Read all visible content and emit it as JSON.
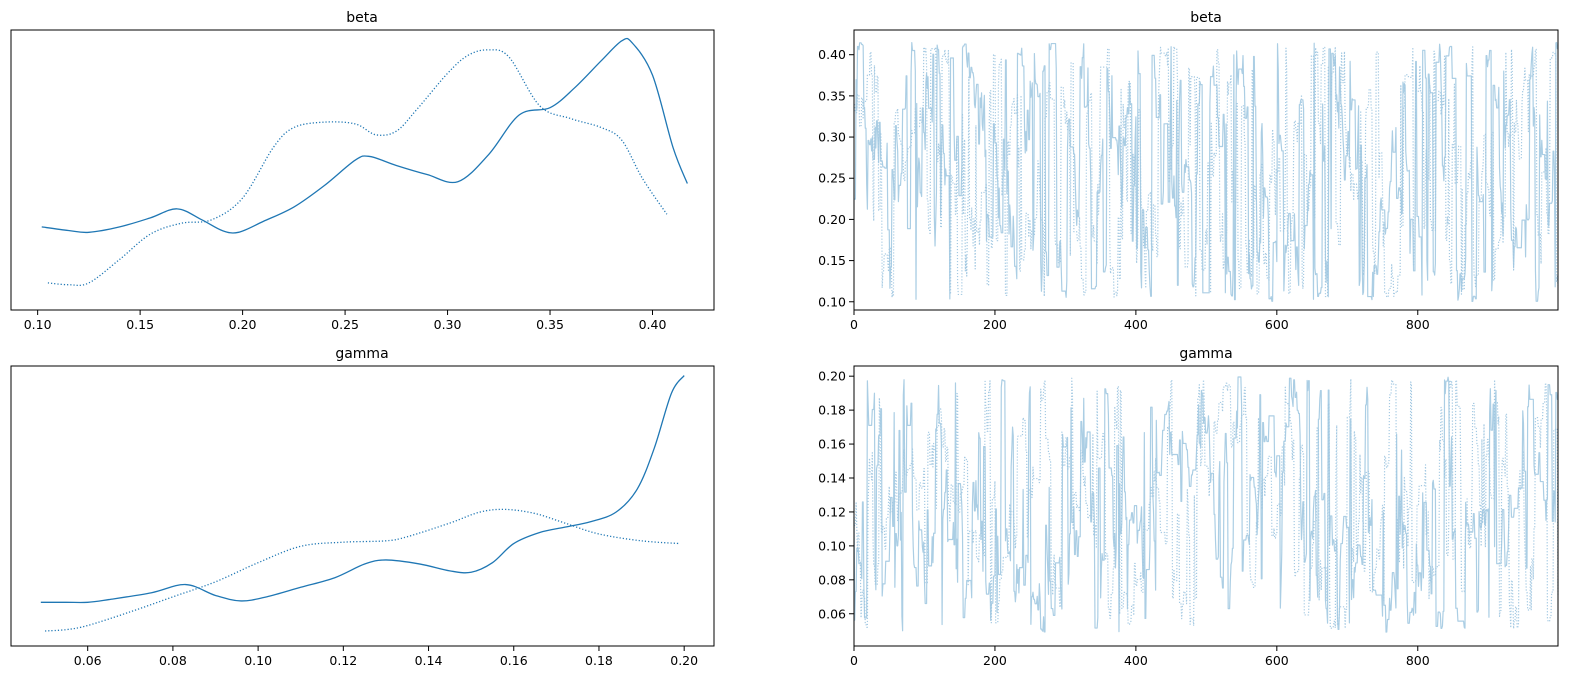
{
  "colors": {
    "kde_line": "#1f77b4",
    "trace_line": "#a6cbe3",
    "trace_dotted": "#9fc6e0",
    "frame": "#000000",
    "background": "#ffffff"
  },
  "chart_data": [
    {
      "type": "line",
      "title": "beta",
      "xlabel": "",
      "ylabel": "",
      "xlim": [
        0.087,
        0.43
      ],
      "xticks": [
        0.1,
        0.15,
        0.2,
        0.25,
        0.3,
        0.35,
        0.4
      ],
      "xtick_labels": [
        "0.10",
        "0.15",
        "0.20",
        "0.25",
        "0.30",
        "0.35",
        "0.40"
      ],
      "yticks_visible": false,
      "grid": false,
      "series": [
        {
          "style": "solid",
          "x": [
            0.102,
            0.115,
            0.125,
            0.14,
            0.155,
            0.168,
            0.18,
            0.19,
            0.198,
            0.21,
            0.225,
            0.24,
            0.255,
            0.262,
            0.275,
            0.29,
            0.305,
            0.32,
            0.335,
            0.35,
            0.362,
            0.375,
            0.385,
            0.39,
            0.4,
            0.41,
            0.417
          ],
          "y": [
            0.36,
            0.34,
            0.33,
            0.36,
            0.41,
            0.46,
            0.4,
            0.34,
            0.33,
            0.39,
            0.47,
            0.59,
            0.73,
            0.75,
            0.7,
            0.65,
            0.61,
            0.76,
            0.98,
            1.02,
            1.13,
            1.28,
            1.39,
            1.38,
            1.2,
            0.8,
            0.6
          ]
        },
        {
          "style": "dotted",
          "x": [
            0.105,
            0.115,
            0.125,
            0.14,
            0.155,
            0.17,
            0.185,
            0.2,
            0.215,
            0.225,
            0.24,
            0.255,
            0.265,
            0.275,
            0.285,
            0.3,
            0.31,
            0.32,
            0.33,
            0.345,
            0.36,
            0.375,
            0.385,
            0.395,
            0.407
          ],
          "y": [
            0.05,
            0.04,
            0.05,
            0.18,
            0.32,
            0.38,
            0.4,
            0.52,
            0.8,
            0.91,
            0.94,
            0.93,
            0.87,
            0.89,
            1.01,
            1.21,
            1.31,
            1.34,
            1.3,
            1.03,
            0.96,
            0.91,
            0.84,
            0.63,
            0.43
          ]
        }
      ]
    },
    {
      "type": "line",
      "title": "beta",
      "xlabel": "",
      "ylabel": "",
      "xlim": [
        0,
        999
      ],
      "ylim": [
        0.09,
        0.43
      ],
      "xticks": [
        0,
        200,
        400,
        600,
        800
      ],
      "xtick_labels": [
        "0",
        "200",
        "400",
        "600",
        "800"
      ],
      "yticks": [
        0.1,
        0.15,
        0.2,
        0.25,
        0.3,
        0.35,
        0.4
      ],
      "ytick_labels": [
        "0.10",
        "0.15",
        "0.20",
        "0.25",
        "0.30",
        "0.35",
        "0.40"
      ],
      "grid": false,
      "series": [
        {
          "style": "solid",
          "n_draws": 1000,
          "range": [
            0.1,
            0.415
          ]
        },
        {
          "style": "dotted",
          "n_draws": 1000,
          "range": [
            0.105,
            0.41
          ]
        }
      ]
    },
    {
      "type": "line",
      "title": "gamma",
      "xlabel": "",
      "ylabel": "",
      "xlim": [
        0.042,
        0.207
      ],
      "xticks": [
        0.06,
        0.08,
        0.1,
        0.12,
        0.14,
        0.16,
        0.18,
        0.2
      ],
      "xtick_labels": [
        "0.06",
        "0.08",
        "0.10",
        "0.12",
        "0.14",
        "0.16",
        "0.18",
        "0.20"
      ],
      "yticks_visible": false,
      "grid": false,
      "series": [
        {
          "style": "solid",
          "x": [
            0.049,
            0.055,
            0.06,
            0.065,
            0.075,
            0.083,
            0.09,
            0.096,
            0.102,
            0.11,
            0.118,
            0.125,
            0.13,
            0.138,
            0.145,
            0.15,
            0.155,
            0.16,
            0.166,
            0.172,
            0.178,
            0.184,
            0.189,
            0.193,
            0.197,
            0.2
          ],
          "y": [
            0.27,
            0.27,
            0.27,
            0.29,
            0.34,
            0.4,
            0.32,
            0.28,
            0.31,
            0.38,
            0.45,
            0.55,
            0.58,
            0.55,
            0.5,
            0.49,
            0.56,
            0.7,
            0.78,
            0.82,
            0.86,
            0.93,
            1.1,
            1.4,
            1.8,
            1.93
          ]
        },
        {
          "style": "dotted",
          "x": [
            0.05,
            0.055,
            0.06,
            0.07,
            0.08,
            0.09,
            0.1,
            0.11,
            0.12,
            0.13,
            0.135,
            0.145,
            0.152,
            0.158,
            0.165,
            0.172,
            0.18,
            0.19,
            0.199
          ],
          "y": [
            0.06,
            0.07,
            0.1,
            0.2,
            0.31,
            0.42,
            0.56,
            0.68,
            0.71,
            0.72,
            0.75,
            0.85,
            0.93,
            0.95,
            0.92,
            0.85,
            0.77,
            0.72,
            0.7
          ]
        }
      ]
    },
    {
      "type": "line",
      "title": "gamma",
      "xlabel": "",
      "ylabel": "",
      "xlim": [
        0,
        999
      ],
      "ylim": [
        0.041,
        0.206
      ],
      "xticks": [
        0,
        200,
        400,
        600,
        800
      ],
      "xtick_labels": [
        "0",
        "200",
        "400",
        "600",
        "800"
      ],
      "yticks": [
        0.06,
        0.08,
        0.1,
        0.12,
        0.14,
        0.16,
        0.18,
        0.2
      ],
      "ytick_labels": [
        "0.06",
        "0.08",
        "0.10",
        "0.12",
        "0.14",
        "0.16",
        "0.18",
        "0.20"
      ],
      "grid": false,
      "series": [
        {
          "style": "solid",
          "n_draws": 1000,
          "range": [
            0.049,
            0.2
          ]
        },
        {
          "style": "dotted",
          "n_draws": 1000,
          "range": [
            0.051,
            0.199
          ]
        }
      ]
    }
  ]
}
